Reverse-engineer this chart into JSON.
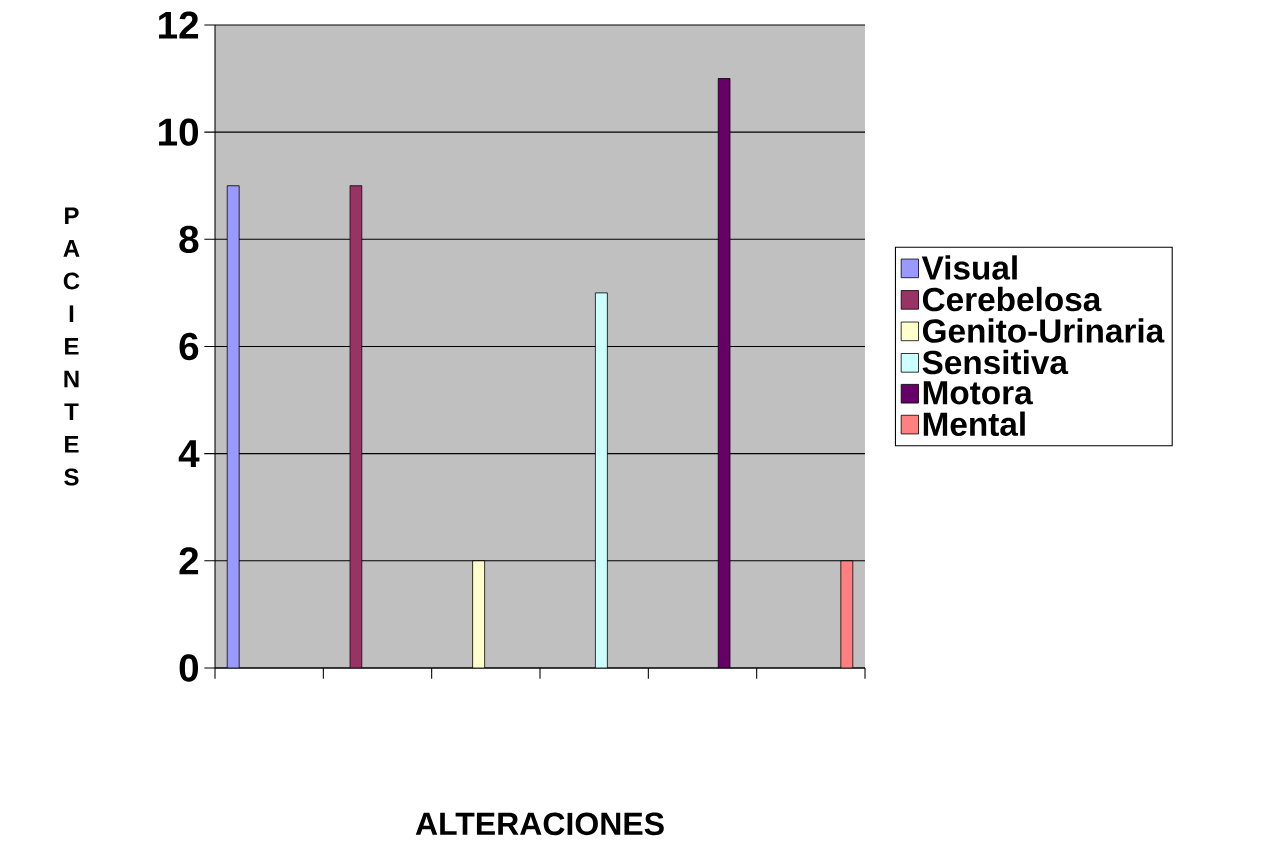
{
  "chart_data": {
    "type": "bar",
    "xlabel": "ALTERACIONES",
    "ylabel": "PACIENTES",
    "categories": [
      null,
      null,
      null,
      null,
      null,
      null
    ],
    "series": [
      {
        "name": "Visual",
        "color": "#9999ff",
        "values": [
          9,
          null,
          null,
          null,
          null,
          null
        ]
      },
      {
        "name": "Cerebelosa",
        "color": "#993366",
        "values": [
          null,
          9,
          null,
          null,
          null,
          null
        ]
      },
      {
        "name": "Genito-Urinaria",
        "color": "#ffffcc",
        "values": [
          null,
          null,
          2,
          null,
          null,
          null
        ]
      },
      {
        "name": "Sensitiva",
        "color": "#ccffff",
        "values": [
          null,
          null,
          null,
          7,
          null,
          null
        ]
      },
      {
        "name": "Motora",
        "color": "#660066",
        "values": [
          null,
          null,
          null,
          null,
          11,
          null
        ]
      },
      {
        "name": "Mental",
        "color": "#ff8080",
        "values": [
          null,
          null,
          null,
          null,
          null,
          2
        ]
      }
    ],
    "ylim": [
      0,
      12
    ],
    "yticks": [
      0,
      2,
      4,
      6,
      8,
      10,
      12
    ],
    "grid": "y",
    "legend": "right"
  }
}
